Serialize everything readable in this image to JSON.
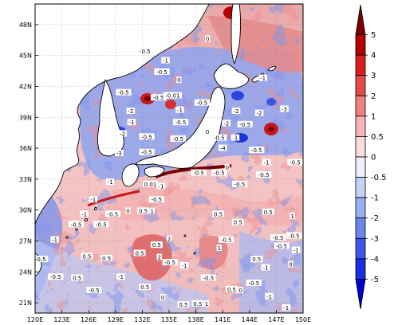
{
  "map": {
    "lon_labels": [
      "120E",
      "123E",
      "126E",
      "129E",
      "132E",
      "135E",
      "138E",
      "141E",
      "144E",
      "147E",
      "150E"
    ],
    "lat_labels": [
      "21N",
      "24N",
      "27N",
      "30N",
      "33N",
      "36N",
      "39N",
      "42N",
      "45N",
      "48N"
    ],
    "lon_range": [
      120,
      150
    ],
    "lat_range": [
      20,
      50
    ]
  },
  "colorbar": {
    "levels": [
      "-5",
      "-4",
      "-3",
      "-2",
      "-1",
      "-0.5",
      "0",
      "0.5",
      "1",
      "2",
      "3",
      "4",
      "5"
    ],
    "colors": [
      "#0000d0",
      "#1a2ee6",
      "#3b57e8",
      "#6a86ee",
      "#98b0f3",
      "#c6d2f8",
      "#eef0fc",
      "#fcdcdc",
      "#f6b4b4",
      "#ee8080",
      "#e44a4a",
      "#d81e1e",
      "#b80000",
      "#7a0000"
    ]
  },
  "contour_labels": [
    {
      "t": "0",
      "lon": 139.3,
      "lat": 46.6
    },
    {
      "t": "-0.5",
      "lon": 132.3,
      "lat": 45.4
    },
    {
      "t": "-1",
      "lon": 134.6,
      "lat": 44.5
    },
    {
      "t": "-0.5",
      "lon": 134.2,
      "lat": 43.4
    },
    {
      "t": "0",
      "lon": 136.1,
      "lat": 42.6
    },
    {
      "t": "-1",
      "lon": 145.5,
      "lat": 42.8
    },
    {
      "t": "-0.5",
      "lon": 129.9,
      "lat": 41.4
    },
    {
      "t": "-0.5",
      "lon": 133.8,
      "lat": 40.9
    },
    {
      "t": "-0.01",
      "lon": 135.4,
      "lat": 41.1
    },
    {
      "t": "-0.5",
      "lon": 138.7,
      "lat": 40.4
    },
    {
      "t": "-2",
      "lon": 130.7,
      "lat": 39.6
    },
    {
      "t": "-1",
      "lon": 136.2,
      "lat": 39.7
    },
    {
      "t": "-2",
      "lon": 142.5,
      "lat": 39.6
    },
    {
      "t": "-2",
      "lon": 145.1,
      "lat": 39.4
    },
    {
      "t": "-3",
      "lon": 147.9,
      "lat": 39.8
    },
    {
      "t": "-1",
      "lon": 130.8,
      "lat": 38.5
    },
    {
      "t": "-0.5",
      "lon": 136.3,
      "lat": 38.5
    },
    {
      "t": "-2",
      "lon": 141.4,
      "lat": 38.4
    },
    {
      "t": "-0.5",
      "lon": 143.5,
      "lat": 38.3
    },
    {
      "t": "-2",
      "lon": 129.8,
      "lat": 37.4
    },
    {
      "t": "-0.5",
      "lon": 132.5,
      "lat": 37.1
    },
    {
      "t": "-0.5",
      "lon": 136.0,
      "lat": 36.9
    },
    {
      "t": "-0.5",
      "lon": 140.6,
      "lat": 37.0
    },
    {
      "t": "-1",
      "lon": 142.4,
      "lat": 37.0
    },
    {
      "t": "-4",
      "lon": 141.0,
      "lat": 36.0
    },
    {
      "t": "-0.5",
      "lon": 144.8,
      "lat": 35.8
    },
    {
      "t": "-3",
      "lon": 129.4,
      "lat": 35.5
    },
    {
      "t": "-0.5",
      "lon": 132.5,
      "lat": 35.6
    },
    {
      "t": "-1",
      "lon": 145.9,
      "lat": 34.6
    },
    {
      "t": "-0.5",
      "lon": 149.1,
      "lat": 34.6
    },
    {
      "t": "-0.5",
      "lon": 138.3,
      "lat": 33.6
    },
    {
      "t": "-0.5",
      "lon": 140.6,
      "lat": 33.6
    },
    {
      "t": "-0.5",
      "lon": 145.6,
      "lat": 33.4
    },
    {
      "t": "-1",
      "lon": 128.4,
      "lat": 32.7
    },
    {
      "t": "0.01",
      "lon": 132.9,
      "lat": 32.5
    },
    {
      "t": "-1",
      "lon": 134.1,
      "lat": 32.3
    },
    {
      "t": "-0.5",
      "lon": 142.9,
      "lat": 32.5
    },
    {
      "t": "-1",
      "lon": 126.5,
      "lat": 31.0
    },
    {
      "t": "-0.5",
      "lon": 133.6,
      "lat": 31.0
    },
    {
      "t": "0",
      "lon": 130.4,
      "lat": 29.9
    },
    {
      "t": "0.5",
      "lon": 132.1,
      "lat": 29.9
    },
    {
      "t": "1",
      "lon": 133.1,
      "lat": 29.9
    },
    {
      "t": "-1",
      "lon": 125.5,
      "lat": 29.6
    },
    {
      "t": "-0.5",
      "lon": 128.7,
      "lat": 29.6
    },
    {
      "t": "0.5",
      "lon": 140.5,
      "lat": 29.6
    },
    {
      "t": "0.5",
      "lon": 146.1,
      "lat": 29.8
    },
    {
      "t": "1",
      "lon": 148.8,
      "lat": 29.4
    },
    {
      "t": "-0.5",
      "lon": 124.6,
      "lat": 28.6
    },
    {
      "t": "-0.5",
      "lon": 127.4,
      "lat": 28.6
    },
    {
      "t": "0.5",
      "lon": 142.7,
      "lat": 28.8
    },
    {
      "t": "-1",
      "lon": 122.2,
      "lat": 27.1
    },
    {
      "t": "2",
      "lon": 135.0,
      "lat": 27.2
    },
    {
      "t": "-0.5",
      "lon": 141.4,
      "lat": 27.1
    },
    {
      "t": "-0.5",
      "lon": 147.2,
      "lat": 27.3
    },
    {
      "t": "-0.5",
      "lon": 149.0,
      "lat": 27.5
    },
    {
      "t": "0.5",
      "lon": 133.6,
      "lat": 26.6
    },
    {
      "t": "1",
      "lon": 140.6,
      "lat": 26.3
    },
    {
      "t": "-0.5",
      "lon": 147.6,
      "lat": 26.5
    },
    {
      "t": "-1",
      "lon": 149.2,
      "lat": 26.1
    },
    {
      "t": "0.5",
      "lon": 131.7,
      "lat": 25.8
    },
    {
      "t": "2",
      "lon": 133.9,
      "lat": 25.4
    },
    {
      "t": "-0.5",
      "lon": 120.6,
      "lat": 25.2
    },
    {
      "t": "0.5",
      "lon": 125.8,
      "lat": 25.5
    },
    {
      "t": "0.5",
      "lon": 128.0,
      "lat": 25.3
    },
    {
      "t": "-0.5",
      "lon": 135.1,
      "lat": 24.9
    },
    {
      "t": "-1",
      "lon": 136.7,
      "lat": 24.6
    },
    {
      "t": "0.5",
      "lon": 144.8,
      "lat": 25.2
    },
    {
      "t": "-1",
      "lon": 145.8,
      "lat": 24.4
    },
    {
      "t": "0",
      "lon": 148.6,
      "lat": 24.7
    },
    {
      "t": "-0.5",
      "lon": 122.3,
      "lat": 23.5
    },
    {
      "t": "0.5",
      "lon": 124.7,
      "lat": 23.4
    },
    {
      "t": "-1",
      "lon": 129.6,
      "lat": 23.5
    },
    {
      "t": "-0.5",
      "lon": 139.4,
      "lat": 23.4
    },
    {
      "t": "-0.5",
      "lon": 144.5,
      "lat": 22.9
    },
    {
      "t": "-0.5",
      "lon": 126.6,
      "lat": 22.2
    },
    {
      "t": "0.5",
      "lon": 132.3,
      "lat": 22.5
    },
    {
      "t": "0.5",
      "lon": 142.0,
      "lat": 22.3
    },
    {
      "t": "0",
      "lon": 143.0,
      "lat": 22.2
    },
    {
      "t": "0",
      "lon": 134.3,
      "lat": 21.5
    },
    {
      "t": "-1",
      "lon": 146.2,
      "lat": 21.6
    },
    {
      "t": "0.5",
      "lon": 136.6,
      "lat": 20.8
    },
    {
      "t": "0.5",
      "lon": 138.2,
      "lat": 20.9
    },
    {
      "t": "1",
      "lon": 139.2,
      "lat": 20.9
    },
    {
      "t": "-1",
      "lon": 148.1,
      "lat": 20.5
    },
    {
      "t": "0",
      "lon": 139.3,
      "lat": 37.6
    },
    {
      "t": "0",
      "lon": 141.5,
      "lat": 34.1
    }
  ]
}
